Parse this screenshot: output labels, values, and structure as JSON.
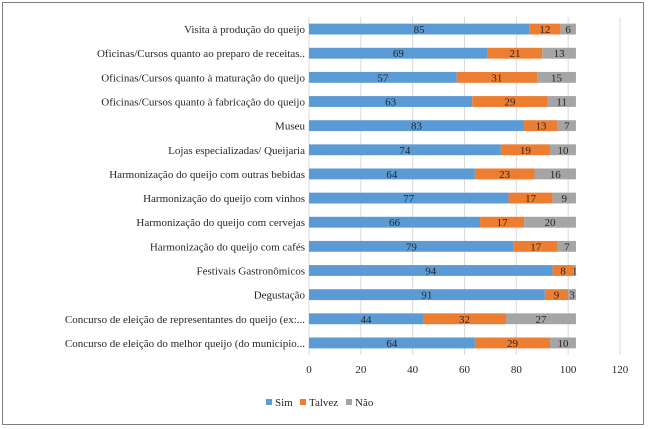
{
  "chart_data": {
    "type": "bar",
    "orientation": "horizontal",
    "stacked": true,
    "categories": [
      "Visita à produção do queijo",
      "Oficinas/Cursos quanto ao preparo de receitas..",
      "Oficinas/Cursos quanto à maturação do queijo",
      "Oficinas/Cursos quanto à fabricação do queijo",
      "Museu",
      "Lojas especializadas/ Queijaria",
      "Harmonização do queijo com outras bebidas",
      "Harmonização do queijo com vinhos",
      "Harmonização do queijo com cervejas",
      "Harmonização do queijo com cafés",
      "Festivais Gastronômicos",
      "Degustação",
      "Concurso de eleição de representantes do queijo (ex:...",
      "Concurso de eleição do melhor queijo (do município..."
    ],
    "series": [
      {
        "name": "Sim",
        "color": "#5b9bd5",
        "values": [
          85,
          69,
          57,
          63,
          83,
          74,
          64,
          77,
          66,
          79,
          94,
          91,
          44,
          64
        ]
      },
      {
        "name": "Talvez",
        "color": "#ed7d31",
        "values": [
          12,
          21,
          31,
          29,
          13,
          19,
          23,
          17,
          17,
          17,
          8,
          9,
          32,
          29
        ]
      },
      {
        "name": "Não",
        "color": "#a5a5a5",
        "values": [
          6,
          13,
          15,
          11,
          7,
          10,
          16,
          9,
          20,
          7,
          1,
          3,
          27,
          10
        ]
      }
    ],
    "xlim": [
      0,
      120
    ],
    "xticks": [
      "0",
      "20",
      "40",
      "60",
      "80",
      "100",
      "120"
    ],
    "grid": true,
    "legend_position": "bottom",
    "title": "",
    "xlabel": "",
    "ylabel": ""
  }
}
